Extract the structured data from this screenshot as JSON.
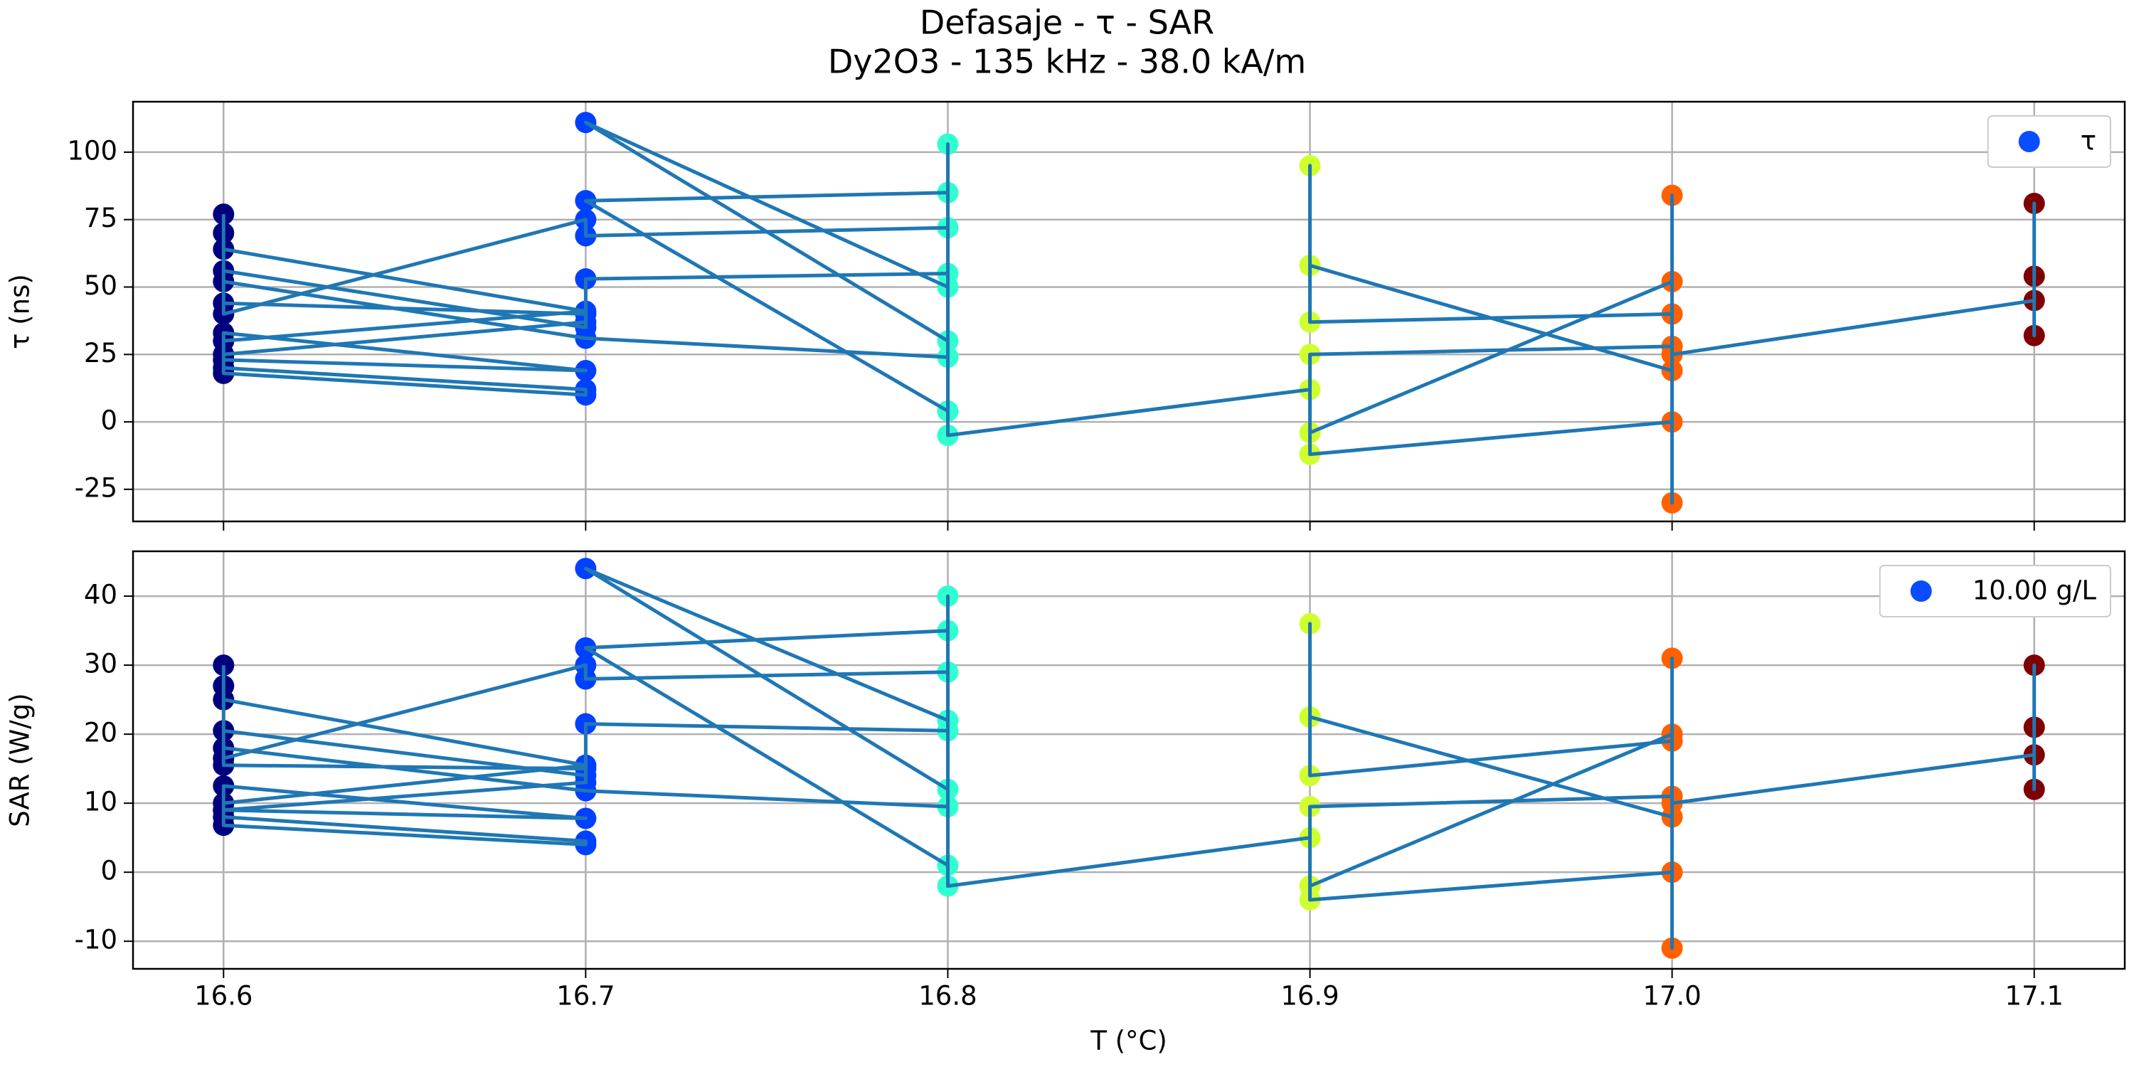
{
  "chart_data": [
    {
      "type": "line",
      "title": "Defasaje - τ - SAR",
      "subtitle": "Dy2O3 - 135 kHz - 38.0 kA/m",
      "ylabel": "τ (ns)",
      "x": [
        16.6,
        16.6,
        16.6,
        16.7,
        16.7,
        16.6,
        16.6,
        16.7,
        16.6,
        16.6,
        16.7,
        16.7,
        16.6,
        16.6,
        16.7,
        16.6,
        16.6,
        16.7,
        16.7,
        16.8,
        16.8,
        16.7,
        16.7,
        16.6,
        16.6,
        16.7,
        16.8,
        16.8,
        16.7,
        16.8,
        16.8,
        16.7,
        16.8,
        16.8,
        16.8,
        16.9,
        16.9,
        17.0,
        17.0,
        16.9,
        16.9,
        16.9,
        17.0,
        17.0,
        16.9,
        16.9,
        17.0,
        17.0,
        17.0,
        17.0,
        17.1,
        17.1,
        17.1,
        17.1
      ],
      "series": [
        {
          "name": "τ",
          "color": "#1f77b4",
          "values": [
            77,
            70,
            56,
            35,
            40,
            44,
            64,
            41,
            30,
            20,
            12,
            10,
            18,
            23,
            19,
            33,
            25,
            37,
            53,
            55,
            72,
            69,
            75,
            40,
            52,
            31,
            24,
            30,
            111,
            50,
            85,
            82,
            4,
            103,
            -5,
            12,
            -4,
            52,
            40,
            37,
            95,
            58,
            19,
            28,
            25,
            -12,
            0,
            -30,
            84,
            25,
            45,
            81,
            32,
            54
          ]
        }
      ],
      "marker_colors": [
        "#00007f",
        "#0040ff",
        "#30ffd0",
        "#d0ff30",
        "#ff6000",
        "#7f0000"
      ],
      "legend_marker_color": "#0a4cff",
      "legend": "upper right",
      "xlim": [
        16.575,
        17.125
      ],
      "xticks": [
        16.6,
        16.7,
        16.8,
        16.9,
        17,
        17.1
      ],
      "ylim": [
        -36.9,
        118.7
      ],
      "yticks": [
        -25,
        0,
        25,
        50,
        75,
        100
      ],
      "grid": true
    },
    {
      "type": "line",
      "xlabel": "T (°C)",
      "ylabel": "SAR (W/g)",
      "x": [
        16.6,
        16.6,
        16.6,
        16.7,
        16.7,
        16.6,
        16.6,
        16.7,
        16.6,
        16.6,
        16.7,
        16.7,
        16.6,
        16.6,
        16.7,
        16.6,
        16.6,
        16.7,
        16.7,
        16.8,
        16.8,
        16.7,
        16.7,
        16.6,
        16.6,
        16.7,
        16.8,
        16.8,
        16.7,
        16.8,
        16.8,
        16.7,
        16.8,
        16.8,
        16.8,
        16.9,
        16.9,
        17.0,
        17.0,
        16.9,
        16.9,
        16.9,
        17.0,
        17.0,
        16.9,
        16.9,
        17.0,
        17.0,
        17.0,
        17.0,
        17.1,
        17.1,
        17.1,
        17.1
      ],
      "series": [
        {
          "name": "10.00 g/L",
          "color": "#1f77b4",
          "values": [
            30,
            27,
            20.5,
            14,
            15,
            15.5,
            25,
            15.5,
            10,
            8,
            4.5,
            4,
            6.8,
            9,
            7.8,
            12.5,
            9,
            13,
            21.5,
            20.5,
            29,
            28,
            30,
            16.5,
            18,
            11.8,
            9.5,
            12,
            44,
            22,
            35,
            32.5,
            1,
            40,
            -2,
            5,
            -2,
            20,
            19,
            14,
            36,
            22.5,
            8,
            11,
            9.5,
            -4,
            0,
            -11,
            31,
            10,
            17,
            30,
            12,
            21
          ]
        }
      ],
      "marker_colors": [
        "#00007f",
        "#0040ff",
        "#30ffd0",
        "#d0ff30",
        "#ff6000",
        "#7f0000"
      ],
      "legend_marker_color": "#0a4cff",
      "legend": "upper right",
      "xlim": [
        16.575,
        17.125
      ],
      "xticks": [
        16.6,
        16.7,
        16.8,
        16.9,
        {
          "value": 17,
          "label": "17.0"
        },
        17.1
      ],
      "ylim": [
        -14,
        46.5
      ],
      "yticks": [
        -10,
        0,
        10,
        20,
        30,
        40
      ],
      "grid": true
    }
  ]
}
